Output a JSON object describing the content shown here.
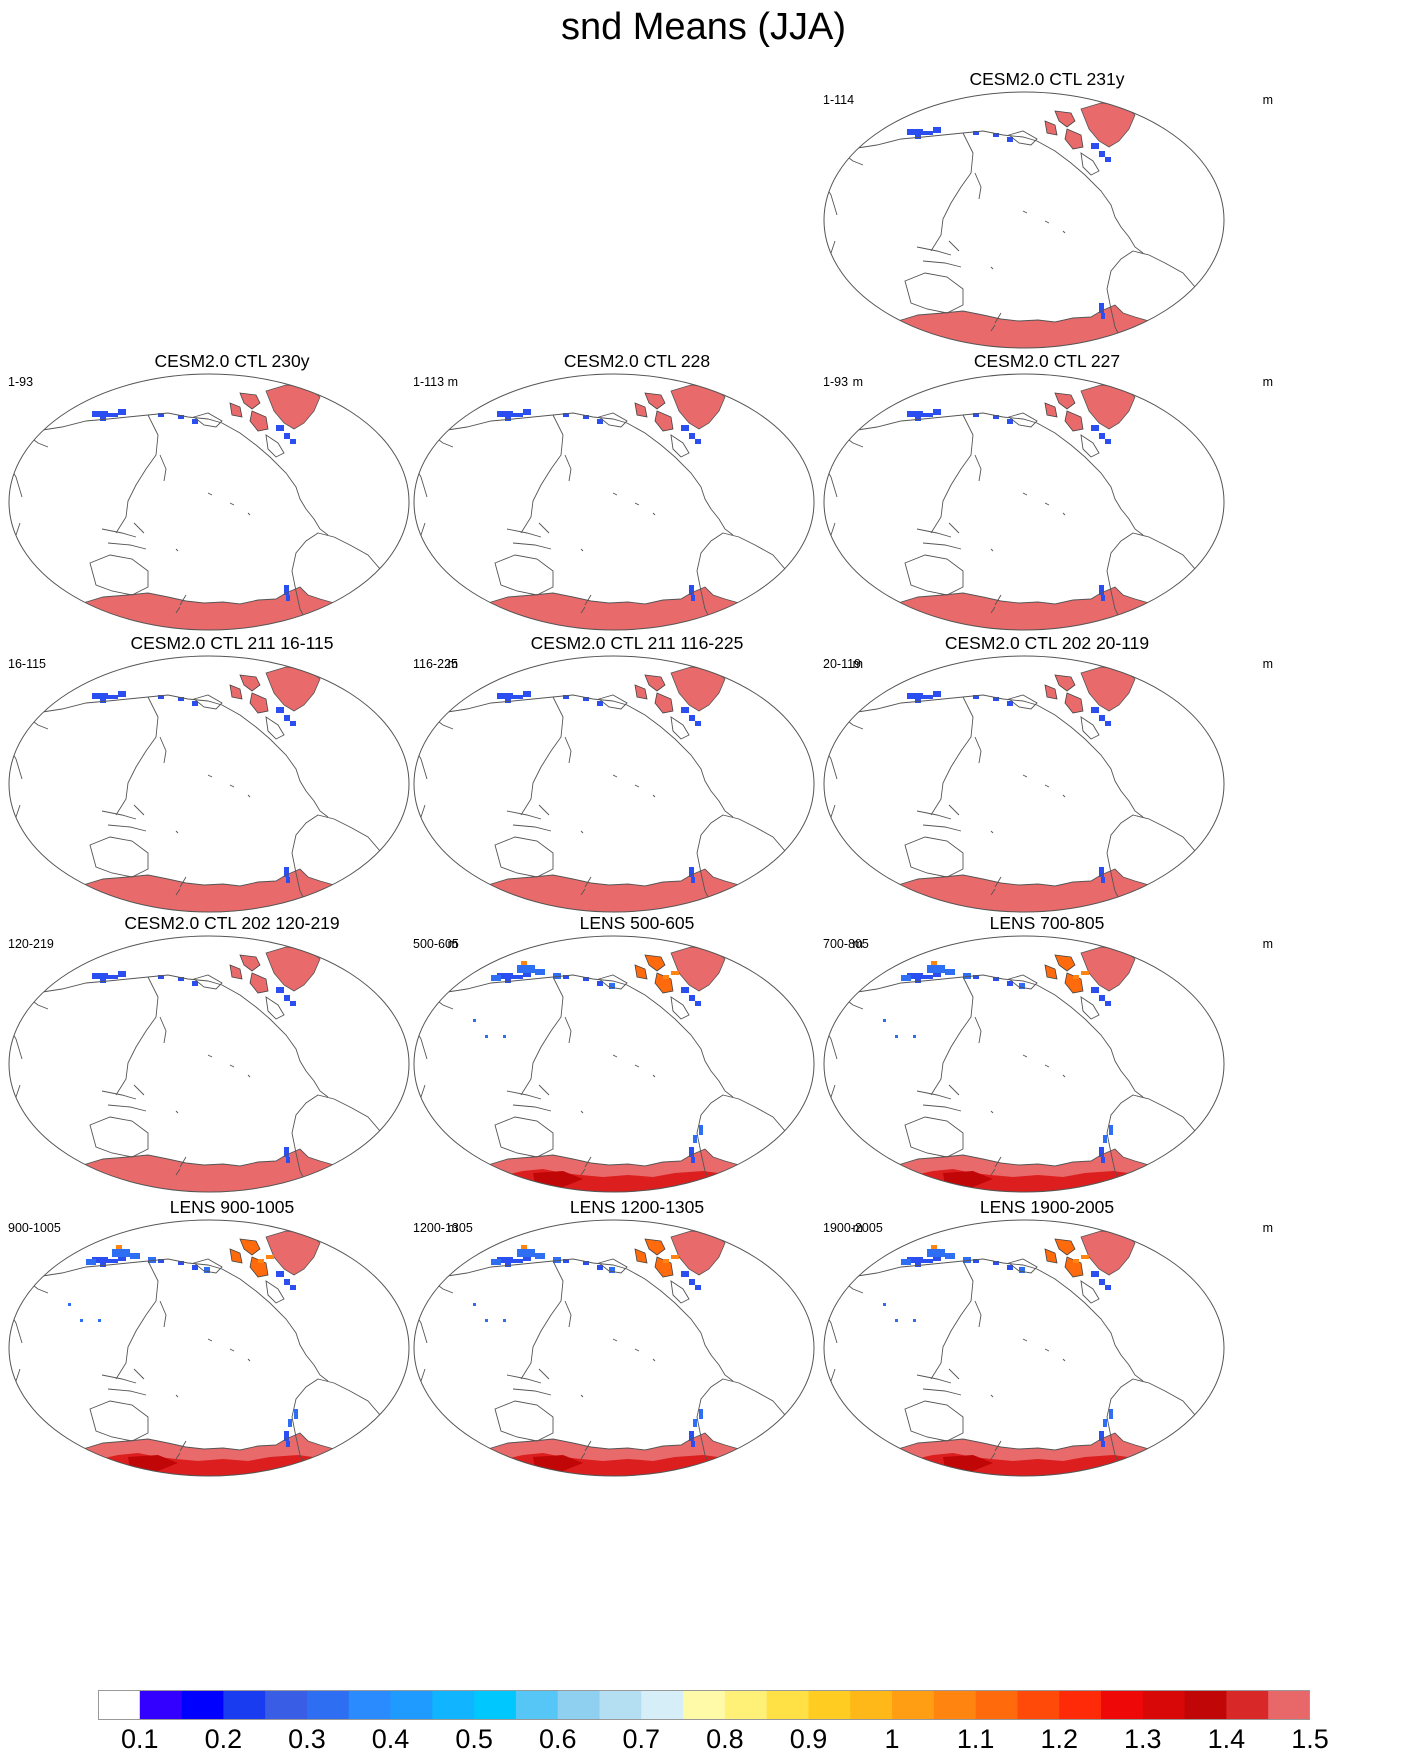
{
  "title": "snd Means (JJA)",
  "panels": [
    {
      "title": "CESM2.0 CTL 231y",
      "left_label": "1-114",
      "units": "m",
      "dataset": "ctl"
    },
    {
      "title": "CESM2.0 CTL 230y",
      "left_label": "1-93",
      "units": "m",
      "dataset": "ctl"
    },
    {
      "title": "CESM2.0 CTL 228",
      "left_label": "1-113",
      "units": "m",
      "dataset": "ctl"
    },
    {
      "title": "CESM2.0 CTL 227",
      "left_label": "1-93",
      "units": "m",
      "dataset": "ctl"
    },
    {
      "title": "CESM2.0 CTL 211 16-115",
      "left_label": "16-115",
      "units": "m",
      "dataset": "ctl"
    },
    {
      "title": "CESM2.0 CTL 211 116-225",
      "left_label": "116-225",
      "units": "m",
      "dataset": "ctl"
    },
    {
      "title": "CESM2.0 CTL 202 20-119",
      "left_label": "20-119",
      "units": "m",
      "dataset": "ctl"
    },
    {
      "title": "CESM2.0 CTL 202 120-219",
      "left_label": "120-219",
      "units": "m",
      "dataset": "ctl"
    },
    {
      "title": "LENS 500-605",
      "left_label": "500-605",
      "units": "m",
      "dataset": "lens"
    },
    {
      "title": "LENS 700-805",
      "left_label": "700-805",
      "units": "m",
      "dataset": "lens"
    },
    {
      "title": "LENS 900-1005",
      "left_label": "900-1005",
      "units": "m",
      "dataset": "lens"
    },
    {
      "title": "LENS 1200-1305",
      "left_label": "1200-1305",
      "units": "m",
      "dataset": "lens"
    },
    {
      "title": "LENS 1900-2005",
      "left_label": "1900-2005",
      "units": "m",
      "dataset": "lens"
    }
  ],
  "colorbar": {
    "labels": [
      "0.1",
      "0.2",
      "0.3",
      "0.4",
      "0.5",
      "0.6",
      "0.7",
      "0.8",
      "0.9",
      "1",
      "1.1",
      "1.2",
      "1.3",
      "1.4",
      "1.5"
    ],
    "colors": [
      "#ffffff",
      "#3300ff",
      "#0000ff",
      "#1a3cf0",
      "#3a5de6",
      "#2e6ef2",
      "#2a8bff",
      "#1f9bff",
      "#10b4ff",
      "#00c8ff",
      "#55c6f5",
      "#8fd0f0",
      "#b4dff2",
      "#d6eef8",
      "#fffaa8",
      "#fff078",
      "#ffe045",
      "#ffcc22",
      "#ffb818",
      "#ff9e12",
      "#ff8410",
      "#ff6a0c",
      "#ff4a0a",
      "#ff2a08",
      "#ee0808",
      "#d80808",
      "#c00606",
      "#d82828",
      "#e8686a"
    ]
  },
  "colors": {
    "coast": "#555555",
    "antarctica_fill": "#e86a6a",
    "greenland_fill": "#e86a6a",
    "lens_ice_dark": "#dc1e1e",
    "snow_blue": "#2a4ef0"
  }
}
